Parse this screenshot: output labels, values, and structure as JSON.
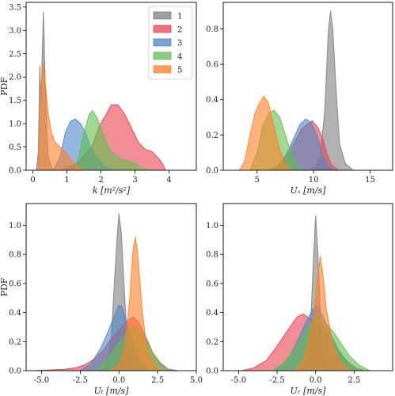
{
  "chart_data": [
    {
      "type": "area",
      "xlabel": "k [m²/s²]",
      "ylabel": "PDF",
      "xlim": [
        -0.2,
        4.8
      ],
      "ylim": [
        0,
        3.6
      ],
      "xticks": [
        0,
        1,
        2,
        3,
        4
      ],
      "yticks": [
        0.0,
        0.5,
        1.0,
        1.5,
        2.0,
        2.5,
        3.0,
        3.5
      ],
      "grid": false,
      "legend": {
        "placement": "top-right",
        "labels": [
          "1",
          "2",
          "3",
          "4",
          "5"
        ]
      },
      "series": [
        {
          "name": "1",
          "color": "#7f7f7f",
          "points": [
            [
              0.1,
              0
            ],
            [
              0.16,
              0.4
            ],
            [
              0.2,
              2.25
            ],
            [
              0.24,
              1.4
            ],
            [
              0.27,
              2.4
            ],
            [
              0.31,
              3.4
            ],
            [
              0.35,
              2.2
            ],
            [
              0.4,
              0.9
            ],
            [
              0.45,
              0.3
            ],
            [
              0.55,
              0.05
            ],
            [
              0.7,
              0
            ]
          ]
        },
        {
          "name": "2",
          "color": "#e8434f",
          "points": [
            [
              0.8,
              0
            ],
            [
              1.0,
              0.05
            ],
            [
              1.3,
              0.15
            ],
            [
              1.55,
              0.35
            ],
            [
              1.75,
              0.55
            ],
            [
              1.95,
              0.95
            ],
            [
              2.15,
              1.2
            ],
            [
              2.3,
              1.4
            ],
            [
              2.5,
              1.4
            ],
            [
              2.7,
              1.2
            ],
            [
              2.9,
              0.9
            ],
            [
              3.1,
              0.6
            ],
            [
              3.3,
              0.45
            ],
            [
              3.5,
              0.4
            ],
            [
              3.7,
              0.25
            ],
            [
              3.8,
              0.15
            ],
            [
              3.9,
              0
            ]
          ]
        },
        {
          "name": "3",
          "color": "#4f86c6",
          "points": [
            [
              0.6,
              0
            ],
            [
              0.8,
              0.3
            ],
            [
              0.95,
              0.8
            ],
            [
              1.1,
              1.05
            ],
            [
              1.25,
              1.1
            ],
            [
              1.4,
              1.0
            ],
            [
              1.55,
              0.8
            ],
            [
              1.7,
              0.5
            ],
            [
              1.9,
              0.25
            ],
            [
              2.1,
              0.1
            ],
            [
              2.3,
              0
            ]
          ]
        },
        {
          "name": "4",
          "color": "#5fbf4f",
          "points": [
            [
              1.2,
              0
            ],
            [
              1.35,
              0.3
            ],
            [
              1.5,
              0.8
            ],
            [
              1.65,
              1.2
            ],
            [
              1.75,
              1.28
            ],
            [
              1.9,
              1.1
            ],
            [
              2.1,
              0.7
            ],
            [
              2.3,
              0.4
            ],
            [
              2.55,
              0.25
            ],
            [
              2.8,
              0.2
            ],
            [
              3.0,
              0.15
            ],
            [
              3.2,
              0.05
            ],
            [
              3.4,
              0
            ]
          ]
        },
        {
          "name": "5",
          "color": "#ff7f27",
          "points": [
            [
              0.15,
              0
            ],
            [
              0.2,
              1.0
            ],
            [
              0.25,
              1.9
            ],
            [
              0.3,
              2.3
            ],
            [
              0.35,
              2.0
            ],
            [
              0.45,
              1.2
            ],
            [
              0.55,
              0.8
            ],
            [
              0.65,
              0.6
            ],
            [
              0.8,
              0.5
            ],
            [
              0.95,
              0.4
            ],
            [
              1.05,
              0.3
            ],
            [
              1.2,
              0.15
            ],
            [
              1.35,
              0.05
            ],
            [
              1.5,
              0
            ]
          ]
        }
      ]
    },
    {
      "type": "area",
      "xlabel": "Uₓ [m/s]",
      "ylabel": "",
      "xlim": [
        2,
        17
      ],
      "ylim": [
        0,
        0.95
      ],
      "xticks": [
        5,
        10,
        15
      ],
      "yticks": [
        0.0,
        0.2,
        0.4,
        0.6,
        0.8
      ],
      "grid": false,
      "series": [
        {
          "name": "1",
          "color": "#7f7f7f",
          "points": [
            [
              9.6,
              0
            ],
            [
              10.2,
              0.02
            ],
            [
              10.6,
              0.08
            ],
            [
              11.0,
              0.35
            ],
            [
              11.3,
              0.78
            ],
            [
              11.5,
              0.9
            ],
            [
              11.7,
              0.8
            ],
            [
              12.0,
              0.45
            ],
            [
              12.3,
              0.15
            ],
            [
              12.8,
              0.04
            ],
            [
              13.5,
              0
            ]
          ]
        },
        {
          "name": "2",
          "color": "#e8434f",
          "points": [
            [
              6.0,
              0
            ],
            [
              7.0,
              0.03
            ],
            [
              7.8,
              0.1
            ],
            [
              8.4,
              0.17
            ],
            [
              8.9,
              0.23
            ],
            [
              9.4,
              0.26
            ],
            [
              9.9,
              0.28
            ],
            [
              10.4,
              0.24
            ],
            [
              10.8,
              0.18
            ],
            [
              11.2,
              0.09
            ],
            [
              11.6,
              0.03
            ],
            [
              12.2,
              0
            ]
          ]
        },
        {
          "name": "3",
          "color": "#4f86c6",
          "points": [
            [
              6.5,
              0
            ],
            [
              7.2,
              0.05
            ],
            [
              7.8,
              0.12
            ],
            [
              8.3,
              0.19
            ],
            [
              8.8,
              0.26
            ],
            [
              9.3,
              0.29
            ],
            [
              9.8,
              0.27
            ],
            [
              10.3,
              0.2
            ],
            [
              10.8,
              0.09
            ],
            [
              11.3,
              0.02
            ],
            [
              11.8,
              0
            ]
          ]
        },
        {
          "name": "4",
          "color": "#5fbf4f",
          "points": [
            [
              4.4,
              0
            ],
            [
              5.0,
              0.1
            ],
            [
              5.5,
              0.25
            ],
            [
              6.0,
              0.32
            ],
            [
              6.5,
              0.34
            ],
            [
              7.0,
              0.3
            ],
            [
              7.5,
              0.2
            ],
            [
              8.0,
              0.1
            ],
            [
              8.5,
              0.03
            ],
            [
              9.0,
              0
            ]
          ]
        },
        {
          "name": "5",
          "color": "#ff7f27",
          "points": [
            [
              3.4,
              0
            ],
            [
              3.9,
              0.05
            ],
            [
              4.3,
              0.18
            ],
            [
              4.8,
              0.32
            ],
            [
              5.2,
              0.38
            ],
            [
              5.6,
              0.42
            ],
            [
              6.0,
              0.38
            ],
            [
              6.5,
              0.25
            ],
            [
              7.0,
              0.12
            ],
            [
              7.5,
              0.04
            ],
            [
              8.0,
              0
            ]
          ]
        }
      ]
    },
    {
      "type": "area",
      "xlabel": "Uₜ [m/s]",
      "ylabel": "PDF",
      "xlim": [
        -6,
        5
      ],
      "ylim": [
        0,
        1.15
      ],
      "xticks": [
        -5.0,
        -2.5,
        0.0,
        2.5,
        5.0
      ],
      "yticks": [
        0.0,
        0.2,
        0.4,
        0.6,
        0.8,
        1.0
      ],
      "grid": false,
      "series": [
        {
          "name": "1",
          "color": "#7f7f7f",
          "points": [
            [
              -1.2,
              0
            ],
            [
              -0.8,
              0.03
            ],
            [
              -0.5,
              0.2
            ],
            [
              -0.3,
              0.6
            ],
            [
              -0.1,
              0.95
            ],
            [
              0.0,
              1.08
            ],
            [
              0.15,
              0.95
            ],
            [
              0.35,
              0.55
            ],
            [
              0.55,
              0.18
            ],
            [
              0.85,
              0.03
            ],
            [
              1.2,
              0
            ]
          ]
        },
        {
          "name": "2",
          "color": "#e8434f",
          "points": [
            [
              -5.5,
              0
            ],
            [
              -4.5,
              0.005
            ],
            [
              -3.5,
              0.01
            ],
            [
              -2.8,
              0.02
            ],
            [
              -2.2,
              0.04
            ],
            [
              -1.6,
              0.08
            ],
            [
              -1.0,
              0.14
            ],
            [
              -0.5,
              0.22
            ],
            [
              0.0,
              0.28
            ],
            [
              0.5,
              0.34
            ],
            [
              0.9,
              0.37
            ],
            [
              1.3,
              0.33
            ],
            [
              1.7,
              0.24
            ],
            [
              2.2,
              0.12
            ],
            [
              2.7,
              0.05
            ],
            [
              3.2,
              0.01
            ],
            [
              3.8,
              0
            ]
          ]
        },
        {
          "name": "3",
          "color": "#4f86c6",
          "points": [
            [
              -2.5,
              0
            ],
            [
              -1.8,
              0.05
            ],
            [
              -1.2,
              0.15
            ],
            [
              -0.7,
              0.27
            ],
            [
              -0.3,
              0.38
            ],
            [
              0.0,
              0.45
            ],
            [
              0.2,
              0.44
            ],
            [
              0.5,
              0.33
            ],
            [
              0.9,
              0.18
            ],
            [
              1.4,
              0.06
            ],
            [
              2.0,
              0
            ]
          ]
        },
        {
          "name": "4",
          "color": "#5fbf4f",
          "points": [
            [
              -1.5,
              0
            ],
            [
              -1.0,
              0.05
            ],
            [
              -0.5,
              0.12
            ],
            [
              0.0,
              0.19
            ],
            [
              0.5,
              0.26
            ],
            [
              0.9,
              0.3
            ],
            [
              1.3,
              0.28
            ],
            [
              1.8,
              0.2
            ],
            [
              2.3,
              0.1
            ],
            [
              2.8,
              0.03
            ],
            [
              3.4,
              0
            ]
          ]
        },
        {
          "name": "5",
          "color": "#ff7f27",
          "points": [
            [
              -0.6,
              0
            ],
            [
              0.0,
              0.04
            ],
            [
              0.4,
              0.18
            ],
            [
              0.7,
              0.5
            ],
            [
              0.9,
              0.82
            ],
            [
              1.05,
              0.92
            ],
            [
              1.2,
              0.82
            ],
            [
              1.5,
              0.42
            ],
            [
              1.8,
              0.15
            ],
            [
              2.2,
              0.04
            ],
            [
              2.6,
              0
            ]
          ]
        }
      ]
    },
    {
      "type": "area",
      "xlabel": "Uᵣ [m/s]",
      "ylabel": "",
      "xlim": [
        -6,
        5
      ],
      "ylim": [
        0,
        1.15
      ],
      "xticks": [
        -5.0,
        -2.5,
        0.0,
        2.5
      ],
      "yticks": [
        0.0,
        0.2,
        0.4,
        0.6,
        0.8,
        1.0
      ],
      "grid": false,
      "series": [
        {
          "name": "1",
          "color": "#7f7f7f",
          "points": [
            [
              -1.0,
              0
            ],
            [
              -0.6,
              0.05
            ],
            [
              -0.35,
              0.25
            ],
            [
              -0.15,
              0.75
            ],
            [
              0.0,
              1.07
            ],
            [
              0.15,
              0.8
            ],
            [
              0.35,
              0.3
            ],
            [
              0.6,
              0.06
            ],
            [
              1.0,
              0
            ]
          ]
        },
        {
          "name": "2",
          "color": "#e8434f",
          "points": [
            [
              -4.8,
              0
            ],
            [
              -4.0,
              0.02
            ],
            [
              -3.2,
              0.07
            ],
            [
              -2.5,
              0.17
            ],
            [
              -1.8,
              0.28
            ],
            [
              -1.2,
              0.37
            ],
            [
              -0.8,
              0.39
            ],
            [
              -0.4,
              0.36
            ],
            [
              0.0,
              0.33
            ],
            [
              0.5,
              0.28
            ],
            [
              1.0,
              0.22
            ],
            [
              1.5,
              0.14
            ],
            [
              2.0,
              0.07
            ],
            [
              2.6,
              0.02
            ],
            [
              3.2,
              0
            ]
          ]
        },
        {
          "name": "3",
          "color": "#4f86c6",
          "points": [
            [
              -2.6,
              0
            ],
            [
              -1.8,
              0.08
            ],
            [
              -1.2,
              0.2
            ],
            [
              -0.6,
              0.34
            ],
            [
              -0.2,
              0.42
            ],
            [
              0.1,
              0.45
            ],
            [
              0.5,
              0.37
            ],
            [
              1.0,
              0.25
            ],
            [
              1.6,
              0.12
            ],
            [
              2.2,
              0.04
            ],
            [
              2.8,
              0
            ]
          ]
        },
        {
          "name": "4",
          "color": "#5fbf4f",
          "points": [
            [
              -2.8,
              0
            ],
            [
              -2.0,
              0.06
            ],
            [
              -1.3,
              0.16
            ],
            [
              -0.7,
              0.27
            ],
            [
              -0.2,
              0.34
            ],
            [
              0.2,
              0.37
            ],
            [
              0.7,
              0.32
            ],
            [
              1.2,
              0.26
            ],
            [
              1.7,
              0.18
            ],
            [
              2.2,
              0.1
            ],
            [
              2.8,
              0.04
            ],
            [
              3.5,
              0
            ]
          ]
        },
        {
          "name": "5",
          "color": "#ff7f27",
          "points": [
            [
              -1.4,
              0
            ],
            [
              -0.9,
              0.05
            ],
            [
              -0.5,
              0.18
            ],
            [
              -0.1,
              0.4
            ],
            [
              0.15,
              0.65
            ],
            [
              0.3,
              0.79
            ],
            [
              0.45,
              0.68
            ],
            [
              0.7,
              0.42
            ],
            [
              1.1,
              0.2
            ],
            [
              1.6,
              0.06
            ],
            [
              2.2,
              0
            ]
          ]
        }
      ]
    }
  ]
}
